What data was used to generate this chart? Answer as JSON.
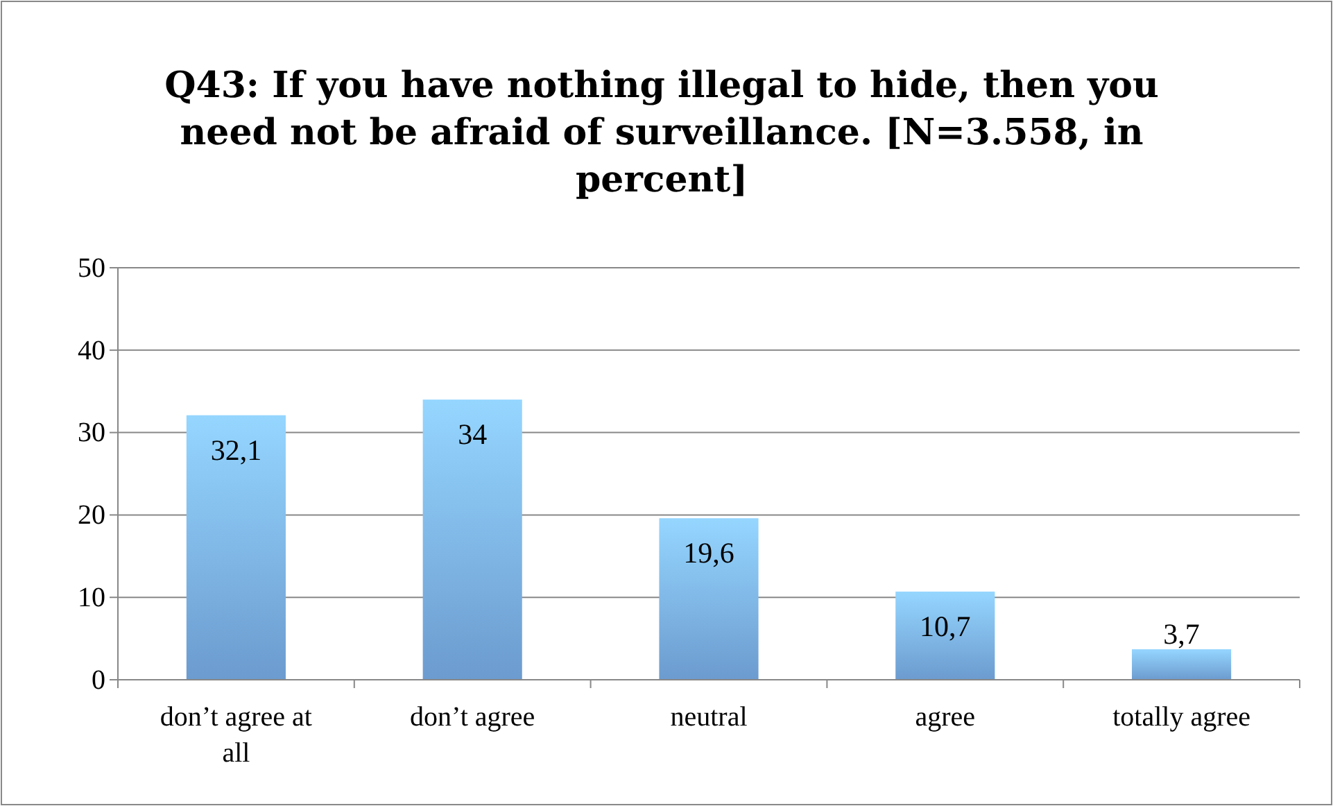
{
  "chart_data": {
    "type": "bar",
    "title": "Q43: If you have nothing illegal to hide, then you need not be afraid of surveillance. [N=3.558, in percent]",
    "categories": [
      "don’t agree at all",
      "don’t agree",
      "neutral",
      "agree",
      "totally agree"
    ],
    "values": [
      32.1,
      34,
      19.6,
      10.7,
      3.7
    ],
    "value_labels": [
      "32,1",
      "34",
      "19,6",
      "10,7",
      "3,7"
    ],
    "color": "#7db3ef",
    "ylim": [
      0,
      50
    ],
    "yticks": [
      0,
      10,
      20,
      30,
      40,
      50
    ],
    "grid": "y"
  }
}
